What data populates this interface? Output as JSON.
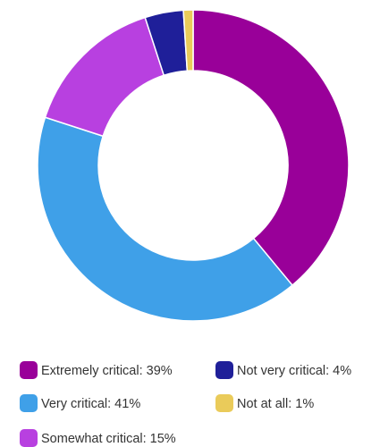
{
  "chart_data": {
    "type": "donut",
    "categories": [
      "Extremely critical: 39%",
      "Very critical: 41%",
      "Somewhat critical: 15%",
      "Not very critical: 4%",
      "Not at all: 1%"
    ],
    "values": [
      39,
      41,
      15,
      4,
      1
    ],
    "colors": [
      "#990099",
      "#3fa0e8",
      "#b840e0",
      "#1f1f99",
      "#eacb5a"
    ],
    "legend": "bottom"
  }
}
